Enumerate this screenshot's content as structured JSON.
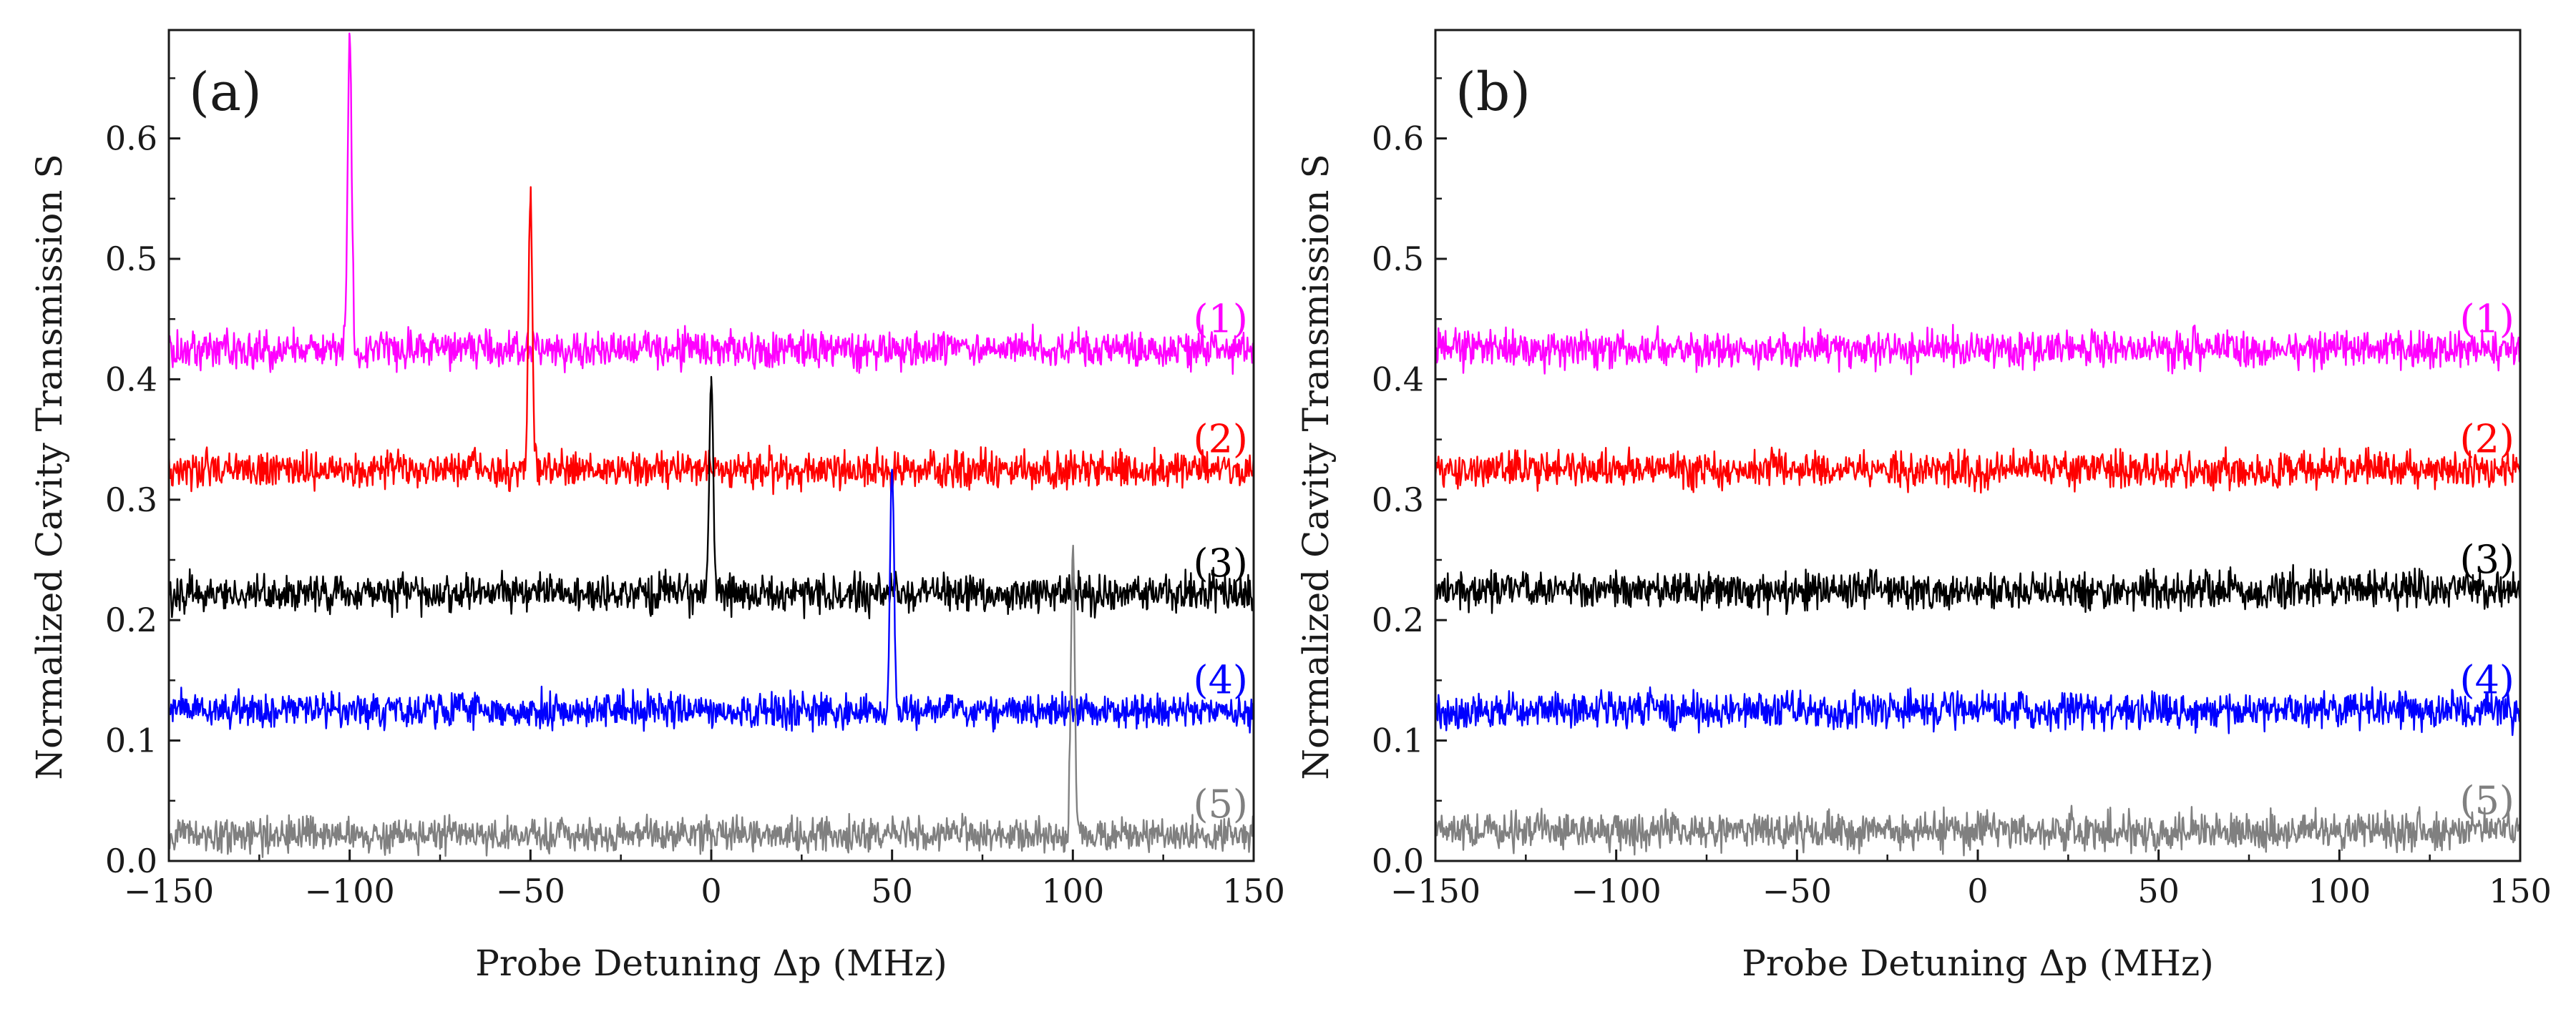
{
  "chart_data": [
    {
      "type": "line",
      "panel_label": "(a)",
      "xlabel": "Probe Detuning Δp (MHz)",
      "ylabel": "Normalized Cavity Transmission S",
      "xlim": [
        -150,
        150
      ],
      "ylim": [
        0.0,
        0.69
      ],
      "x_ticks": [
        -150,
        -100,
        -50,
        0,
        50,
        100,
        150
      ],
      "x_tick_labels": [
        "−150",
        "−100",
        "−50",
        "0",
        "50",
        "100",
        "150"
      ],
      "y_ticks": [
        0.0,
        0.1,
        0.2,
        0.3,
        0.4,
        0.5,
        0.6
      ],
      "y_tick_labels": [
        "0.0",
        "0.1",
        "0.2",
        "0.3",
        "0.4",
        "0.5",
        "0.6"
      ],
      "grid": false,
      "series": [
        {
          "name": "(1)",
          "color": "#ff00ff",
          "baseline": 0.425,
          "noise_amplitude": 0.012,
          "peak_x": -100,
          "peak_y": 0.685
        },
        {
          "name": "(2)",
          "color": "#ff0000",
          "baseline": 0.325,
          "noise_amplitude": 0.012,
          "peak_x": -50,
          "peak_y": 0.548
        },
        {
          "name": "(3)",
          "color": "#000000",
          "baseline": 0.222,
          "noise_amplitude": 0.012,
          "peak_x": 0,
          "peak_y": 0.402
        },
        {
          "name": "(4)",
          "color": "#0000ff",
          "baseline": 0.125,
          "noise_amplitude": 0.011,
          "peak_x": 50,
          "peak_y": 0.325
        },
        {
          "name": "(5)",
          "color": "#808080",
          "baseline": 0.022,
          "noise_amplitude": 0.011,
          "peak_x": 100,
          "peak_y": 0.258
        }
      ]
    },
    {
      "type": "line",
      "panel_label": "(b)",
      "xlabel": "Probe Detuning  Δp (MHz)",
      "ylabel": "Normalized Cavity Transmission S",
      "xlim": [
        -150,
        150
      ],
      "ylim": [
        0.0,
        0.69
      ],
      "x_ticks": [
        -150,
        -100,
        -50,
        0,
        50,
        100,
        150
      ],
      "x_tick_labels": [
        "−150",
        "−100",
        "−50",
        "0",
        "50",
        "100",
        "150"
      ],
      "y_ticks": [
        0.0,
        0.1,
        0.2,
        0.3,
        0.4,
        0.5,
        0.6
      ],
      "y_tick_labels": [
        "0.0",
        "0.1",
        "0.2",
        "0.3",
        "0.4",
        "0.5",
        "0.6"
      ],
      "grid": false,
      "series": [
        {
          "name": "(1)",
          "color": "#ff00ff",
          "baseline": 0.425,
          "noise_amplitude": 0.012
        },
        {
          "name": "(2)",
          "color": "#ff0000",
          "baseline": 0.325,
          "noise_amplitude": 0.012
        },
        {
          "name": "(3)",
          "color": "#000000",
          "baseline": 0.225,
          "noise_amplitude": 0.012
        },
        {
          "name": "(4)",
          "color": "#0000ff",
          "baseline": 0.125,
          "noise_amplitude": 0.012
        },
        {
          "name": "(5)",
          "color": "#808080",
          "baseline": 0.025,
          "noise_amplitude": 0.012
        }
      ]
    }
  ]
}
